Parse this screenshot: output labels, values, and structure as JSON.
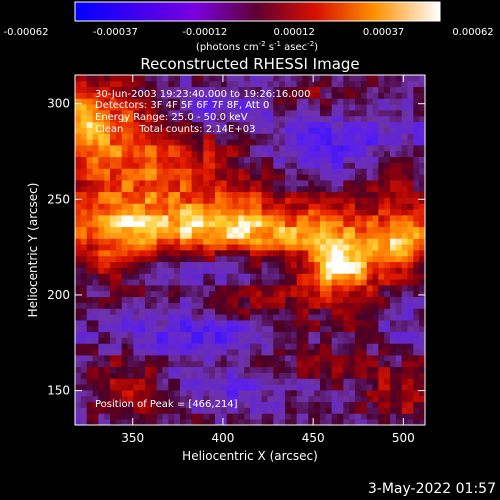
{
  "chart_data": {
    "type": "heatmap",
    "title": "Reconstructed RHESSI Image",
    "xlabel": "Heliocentric X (arcsec)",
    "ylabel": "Heliocentric Y (arcsec)",
    "xlim": [
      318,
      512
    ],
    "ylim": [
      132,
      315
    ],
    "xticks": [
      350,
      400,
      450,
      500
    ],
    "yticks": [
      150,
      200,
      250,
      300
    ],
    "colorbar": {
      "tick_labels": [
        "-0.00062",
        "-0.00037",
        "-0.00012",
        "0.00012",
        "0.00037",
        "0.00062"
      ],
      "range": [
        -0.00062,
        0.00062
      ],
      "unit_parts": [
        "(photons cm",
        "-2",
        " s",
        "-1",
        " asec",
        "-2",
        ")"
      ]
    },
    "annotations": [
      "30-Jun-2003 19:23:40.000 to 19:26:16.000",
      "Detectors: 3F 4F 5F 6F 7F 8F, Att 0",
      "Energy Range: 25.0 - 50.0 keV",
      "Clean     Total counts: 2.14E+03",
      "Position of Peak = [466,214]"
    ],
    "peak": {
      "x": 466,
      "y": 214,
      "value": 0.00062
    },
    "features": [
      {
        "x": 466,
        "y": 214,
        "sx": 14,
        "sy": 10,
        "amp": 0.0006
      },
      {
        "x": 430,
        "y": 232,
        "sx": 90,
        "sy": 11,
        "amp": 0.00042
      },
      {
        "x": 390,
        "y": 242,
        "sx": 40,
        "sy": 14,
        "amp": 0.00025
      },
      {
        "x": 340,
        "y": 268,
        "sx": 22,
        "sy": 30,
        "amp": 0.0003
      },
      {
        "x": 322,
        "y": 290,
        "sx": 8,
        "sy": 12,
        "amp": 0.00035
      },
      {
        "x": 345,
        "y": 295,
        "sx": 22,
        "sy": 10,
        "amp": 0.00022
      },
      {
        "x": 385,
        "y": 272,
        "sx": 32,
        "sy": 14,
        "amp": 0.00027
      },
      {
        "x": 495,
        "y": 270,
        "sx": 15,
        "sy": 14,
        "amp": 0.00022
      },
      {
        "x": 500,
        "y": 222,
        "sx": 10,
        "sy": 16,
        "amp": 0.00032
      },
      {
        "x": 425,
        "y": 198,
        "sx": 30,
        "sy": 12,
        "amp": 0.00017
      },
      {
        "x": 470,
        "y": 175,
        "sx": 40,
        "sy": 18,
        "amp": 0.00018
      },
      {
        "x": 345,
        "y": 165,
        "sx": 18,
        "sy": 12,
        "amp": 0.00022
      },
      {
        "x": 360,
        "y": 145,
        "sx": 26,
        "sy": 8,
        "amp": 0.00018
      },
      {
        "x": 500,
        "y": 148,
        "sx": 14,
        "sy": 14,
        "amp": 0.0002
      },
      {
        "x": 455,
        "y": 305,
        "sx": 20,
        "sy": 8,
        "amp": 0.00016
      },
      {
        "x": 420,
        "y": 160,
        "sx": 20,
        "sy": 10,
        "amp": 0.00015
      },
      {
        "x": 340,
        "y": 215,
        "sx": 12,
        "sy": 12,
        "amp": 0.00012
      },
      {
        "x": 395,
        "y": 178,
        "sx": 50,
        "sy": 10,
        "amp": -0.0003
      },
      {
        "x": 470,
        "y": 280,
        "sx": 45,
        "sy": 12,
        "amp": -0.00028
      },
      {
        "x": 400,
        "y": 215,
        "sx": 35,
        "sy": 8,
        "amp": -0.00022
      },
      {
        "x": 405,
        "y": 150,
        "sx": 30,
        "sy": 8,
        "amp": -0.00028
      },
      {
        "x": 380,
        "y": 298,
        "sx": 30,
        "sy": 8,
        "amp": -0.0002
      },
      {
        "x": 500,
        "y": 185,
        "sx": 12,
        "sy": 20,
        "amp": -0.00022
      }
    ],
    "background": -8e-05
  },
  "footer": {
    "date": "3-May-2022 01:57"
  }
}
